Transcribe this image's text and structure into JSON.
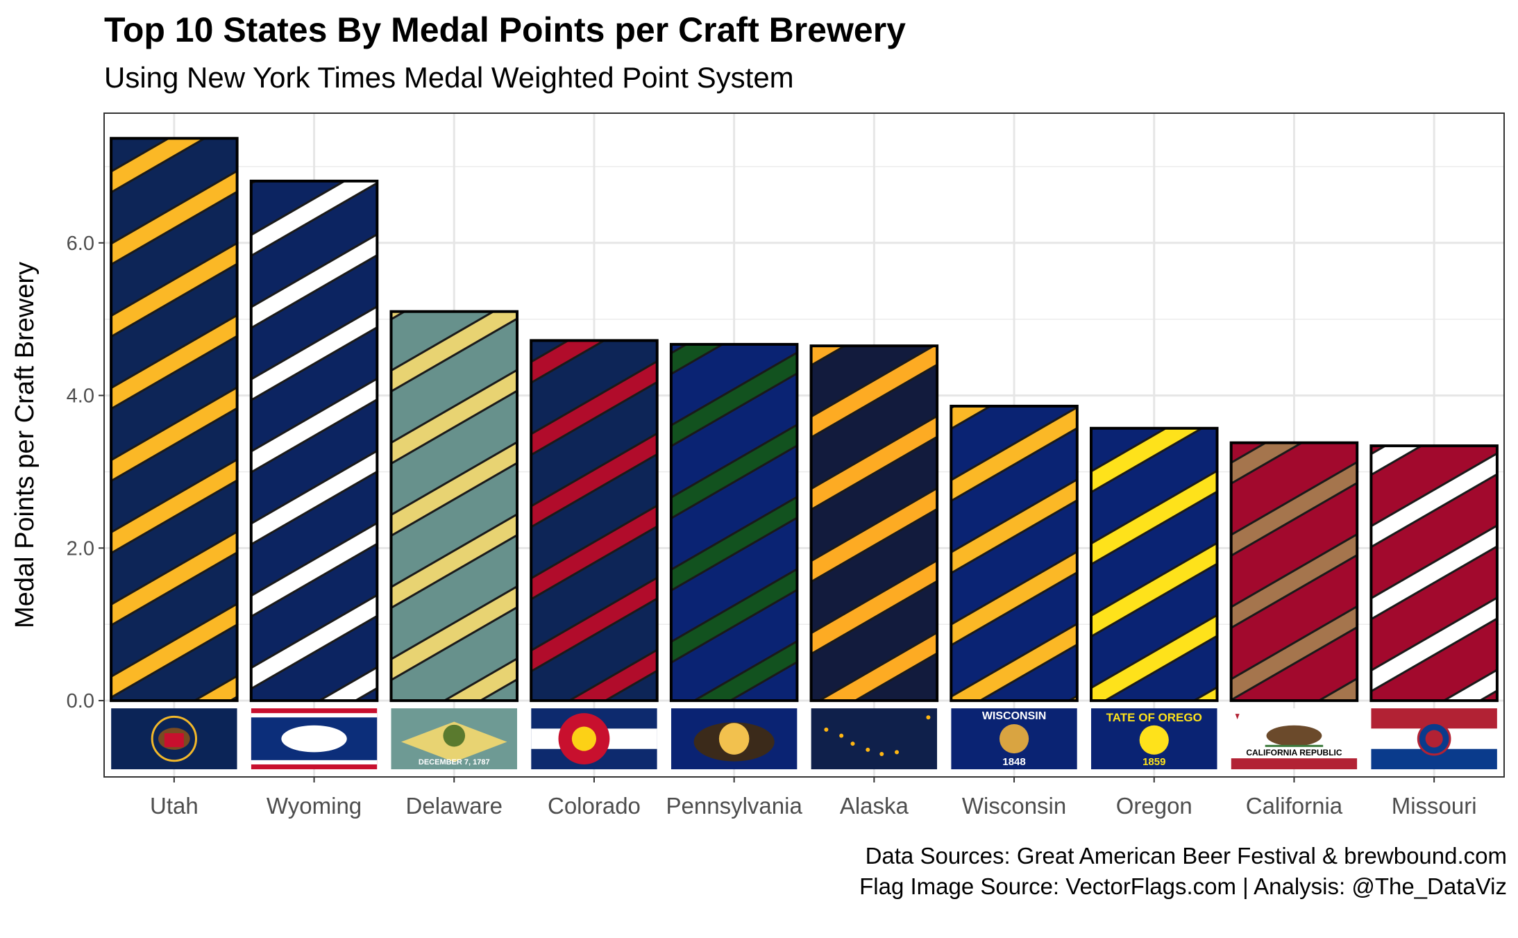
{
  "header": {
    "title": "Top 10 States By Medal Points per Craft Brewery",
    "subtitle": "Using New York Times Medal Weighted Point System"
  },
  "caption": {
    "line1": "Data Sources: Great American Beer Festival & brewbound.com",
    "line2": "Flag Image Source: VectorFlags.com | Analysis: @The_DataViz"
  },
  "chart_data": {
    "type": "bar",
    "title": "Top 10 States By Medal Points per Craft Brewery",
    "subtitle": "Using New York Times Medal Weighted Point System",
    "xlabel": "",
    "ylabel": "Medal Points per Craft Brewery",
    "ylim": [
      -1.0,
      7.7
    ],
    "yticks": [
      0,
      2,
      4,
      6
    ],
    "ytick_labels": [
      "0.0",
      "2.0",
      "4.0",
      "6.0"
    ],
    "grid": true,
    "legend": "none",
    "categories": [
      "Utah",
      "Wyoming",
      "Delaware",
      "Colorado",
      "Pennsylvania",
      "Alaska",
      "Wisconsin",
      "Oregon",
      "California",
      "Missouri"
    ],
    "values": [
      7.37,
      6.81,
      5.1,
      4.72,
      4.67,
      4.65,
      3.86,
      3.57,
      3.38,
      3.34
    ],
    "bar_colors": [
      {
        "base": "#0d2557",
        "stripe": "#fbb826"
      },
      {
        "base": "#0c2461",
        "stripe": "#ffffff"
      },
      {
        "base": "#67918c",
        "stripe": "#e8d372"
      },
      {
        "base": "#0d2557",
        "stripe": "#b10c2b"
      },
      {
        "base": "#0a2373",
        "stripe": "#12521f"
      },
      {
        "base": "#121b3d",
        "stripe": "#fdab23"
      },
      {
        "base": "#0a2373",
        "stripe": "#fbb826"
      },
      {
        "base": "#0a2373",
        "stripe": "#fee21b"
      },
      {
        "base": "#a2092d",
        "stripe": "#a5754d"
      },
      {
        "base": "#a2092d",
        "stripe": "#ffffff"
      }
    ],
    "flag_icons": [
      "utah-flag-icon",
      "wyoming-flag-icon",
      "delaware-flag-icon",
      "colorado-flag-icon",
      "pennsylvania-flag-icon",
      "alaska-flag-icon",
      "wisconsin-flag-icon",
      "oregon-flag-icon",
      "california-flag-icon",
      "missouri-flag-icon"
    ],
    "flag_text": {
      "wisconsin_top": "WISCONSIN",
      "wisconsin_year": "1848",
      "oregon_top": "TATE OF OREGO",
      "oregon_year": "1859",
      "california": "CALIFORNIA  REPUBLIC",
      "delaware": "DECEMBER 7, 1787"
    }
  }
}
